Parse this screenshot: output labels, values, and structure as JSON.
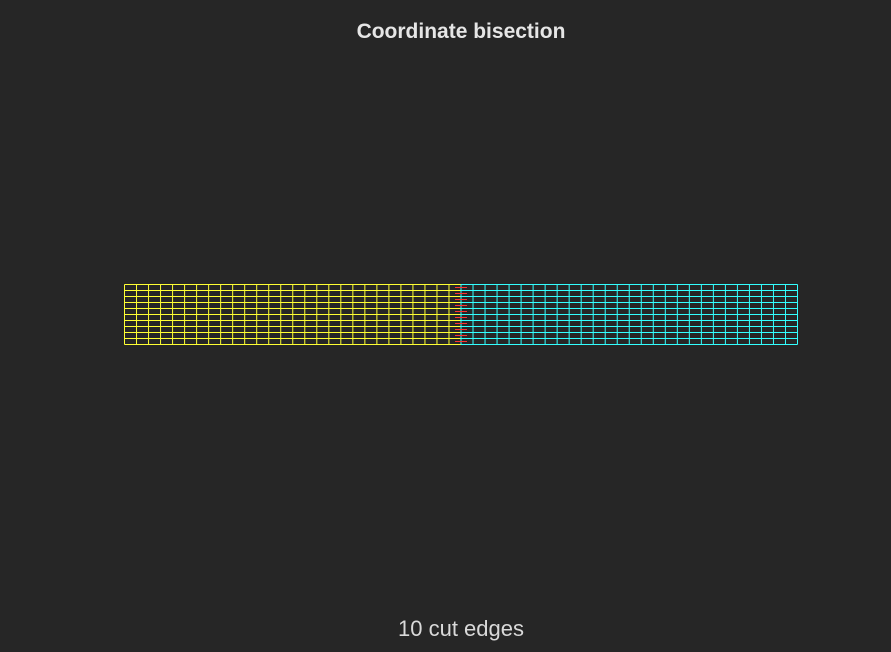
{
  "title": "Coordinate bisection",
  "caption": "10 cut edges",
  "mesh": {
    "columns": 56,
    "rows": 10,
    "partitions": [
      {
        "columns": 28,
        "color": "#ffff33"
      },
      {
        "columns": 28,
        "color": "#33ffff"
      }
    ],
    "cut_edge_color": "#ff3333",
    "cut_edges": 10
  }
}
